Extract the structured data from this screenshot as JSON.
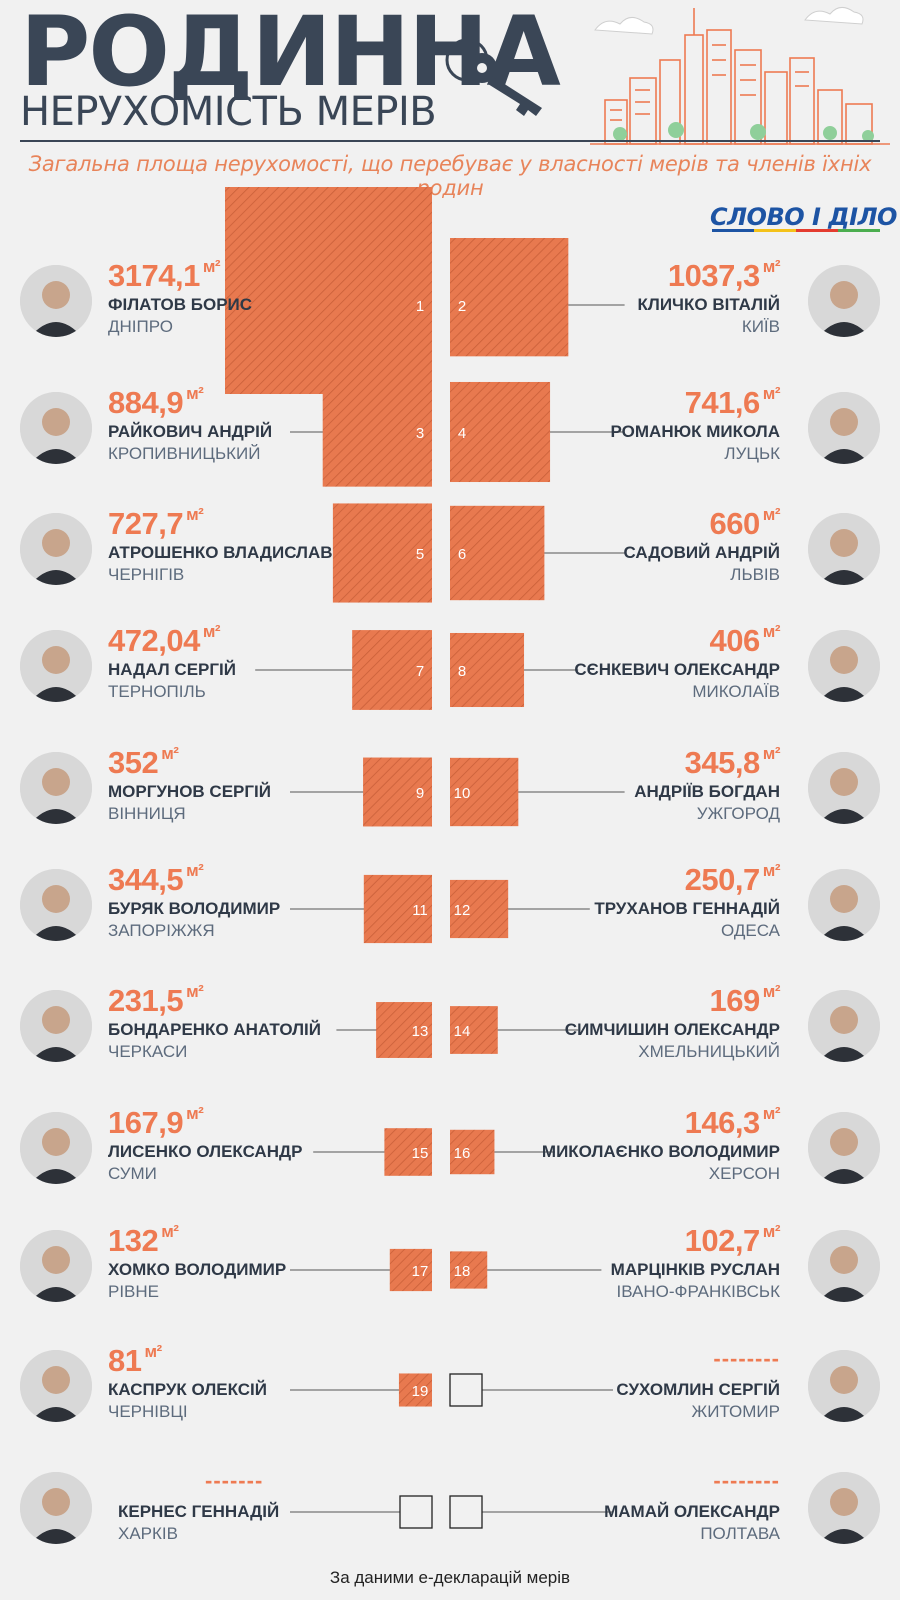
{
  "header": {
    "title": "РОДИННА",
    "subtitle": "НЕРУХОМІСТЬ МЕРІВ",
    "description": "Загальна площа нерухомості, що перебуває у власності мерів та членів їхніх родин",
    "logo": "СЛОВО І ДІЛО"
  },
  "footer": "За даними е-декларацій мерів",
  "colors": {
    "accent": "#ee7a52",
    "square_fill": "#e8794f",
    "text_dark": "#2f3947",
    "text_muted": "#5d6b7d",
    "title": "#3a4656"
  },
  "chart_data": {
    "type": "proportional squares",
    "unit": "м²",
    "mayors": [
      {
        "rank": 1,
        "area_label": "3174,1",
        "value": 3174.1,
        "name": "ФІЛАТОВ БОРИС",
        "city": "ДНІПРО"
      },
      {
        "rank": 2,
        "area_label": "1037,3",
        "value": 1037.3,
        "name": "КЛИЧКО ВІТАЛІЙ",
        "city": "КИЇВ"
      },
      {
        "rank": 3,
        "area_label": "884,9",
        "value": 884.9,
        "name": "РАЙКОВИЧ АНДРІЙ",
        "city": "КРОПИВНИЦЬКИЙ"
      },
      {
        "rank": 4,
        "area_label": "741,6",
        "value": 741.6,
        "name": "РОМАНЮК МИКОЛА",
        "city": "ЛУЦЬК"
      },
      {
        "rank": 5,
        "area_label": "727,7",
        "value": 727.7,
        "name": "АТРОШЕНКО ВЛАДИСЛАВ",
        "city": "ЧЕРНІГІВ"
      },
      {
        "rank": 6,
        "area_label": "660",
        "value": 660,
        "name": "САДОВИЙ АНДРІЙ",
        "city": "ЛЬВІВ"
      },
      {
        "rank": 7,
        "area_label": "472,04",
        "value": 472.04,
        "name": "НАДАЛ СЕРГІЙ",
        "city": "ТЕРНОПІЛЬ"
      },
      {
        "rank": 8,
        "area_label": "406",
        "value": 406,
        "name": "СЄНКЕВИЧ ОЛЕКСАНДР",
        "city": "МИКОЛАЇВ"
      },
      {
        "rank": 9,
        "area_label": "352",
        "value": 352,
        "name": "МОРГУНОВ СЕРГІЙ",
        "city": "ВІННИЦЯ"
      },
      {
        "rank": 10,
        "area_label": "345,8",
        "value": 345.8,
        "name": "АНДРІЇВ БОГДАН",
        "city": "УЖГОРОД"
      },
      {
        "rank": 11,
        "area_label": "344,5",
        "value": 344.5,
        "name": "БУРЯК ВОЛОДИМИР",
        "city": "ЗАПОРІЖЖЯ"
      },
      {
        "rank": 12,
        "area_label": "250,7",
        "value": 250.7,
        "name": "ТРУХАНОВ ГЕННАДІЙ",
        "city": "ОДЕСА"
      },
      {
        "rank": 13,
        "area_label": "231,5",
        "value": 231.5,
        "name": "БОНДАРЕНКО АНАТОЛІЙ",
        "city": "ЧЕРКАСИ"
      },
      {
        "rank": 14,
        "area_label": "169",
        "value": 169,
        "name": "СИМЧИШИН ОЛЕКСАНДР",
        "city": "ХМЕЛЬНИЦЬКИЙ"
      },
      {
        "rank": 15,
        "area_label": "167,9",
        "value": 167.9,
        "name": "ЛИСЕНКО ОЛЕКСАНДР",
        "city": "СУМИ"
      },
      {
        "rank": 16,
        "area_label": "146,3",
        "value": 146.3,
        "name": "МИКОЛАЄНКО ВОЛОДИМИР",
        "city": "ХЕРСОН"
      },
      {
        "rank": 17,
        "area_label": "132",
        "value": 132,
        "name": "ХОМКО ВОЛОДИМИР",
        "city": "РІВНЕ"
      },
      {
        "rank": 18,
        "area_label": "102,7",
        "value": 102.7,
        "name": "МАРЦІНКІВ РУСЛАН",
        "city": "ІВАНО-ФРАНКІВСЬК"
      },
      {
        "rank": 19,
        "area_label": "81",
        "value": 81,
        "name": "КАСПРУК ОЛЕКСІЙ",
        "city": "ЧЕРНІВЦІ"
      },
      {
        "rank": null,
        "area_label": "--------",
        "value": null,
        "name": "СУХОМЛИН СЕРГІЙ",
        "city": "ЖИТОМИР"
      },
      {
        "rank": null,
        "area_label": "-------",
        "value": null,
        "name": "КЕРНЕС ГЕННАДІЙ",
        "city": "ХАРКІВ"
      },
      {
        "rank": null,
        "area_label": "--------",
        "value": null,
        "name": "МАМАЙ ОЛЕКСАНДР",
        "city": "ПОЛТАВА"
      }
    ]
  }
}
